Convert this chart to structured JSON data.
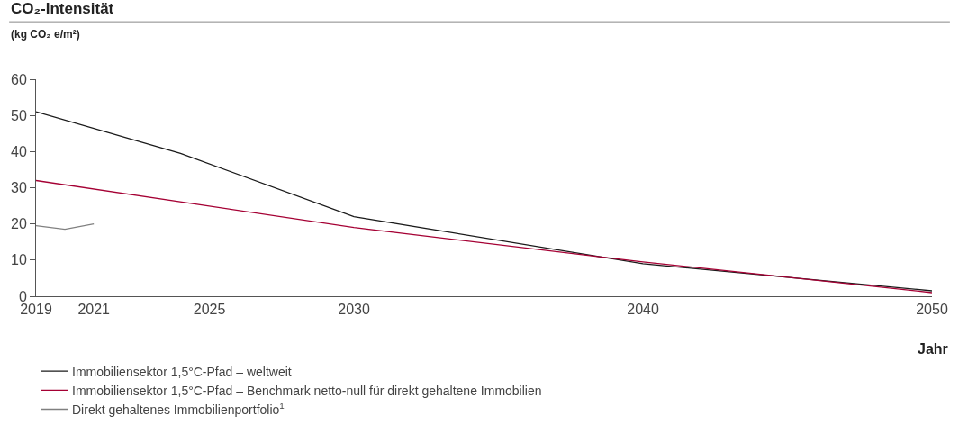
{
  "chart_data": {
    "type": "line",
    "title": "CO₂-Intensität",
    "ylabel": "(kg CO₂ e/m²)",
    "xlabel": "Jahr",
    "xlim": [
      2019,
      2050
    ],
    "xticks": [
      2019,
      2021,
      2025,
      2030,
      2040,
      2050
    ],
    "ylim": [
      0,
      60
    ],
    "yticks": [
      0,
      10,
      20,
      30,
      40,
      50,
      60
    ],
    "legend": "bottom",
    "marker": "none",
    "line_style": "solid",
    "series": [
      {
        "name": "Immobiliensektor 1,5°C-Pfad – weltweit",
        "color": "#1a1a1a",
        "x": [
          2019,
          2024,
          2030,
          2040,
          2050
        ],
        "values": [
          51,
          39.5,
          22,
          9,
          1.5
        ]
      },
      {
        "name": "Immobiliensektor 1,5°C-Pfad – Benchmark netto-null für direkt gehaltene Immobilien",
        "color": "#a50034",
        "x": [
          2019,
          2030,
          2040,
          2050
        ],
        "values": [
          32,
          19,
          9.5,
          1
        ]
      },
      {
        "name": "Direkt gehaltenes Immobilienportfolio$^{1}$",
        "color": "#808080",
        "x": [
          2019,
          2020,
          2021
        ],
        "values": [
          19.5,
          18.5,
          20
        ]
      }
    ]
  }
}
